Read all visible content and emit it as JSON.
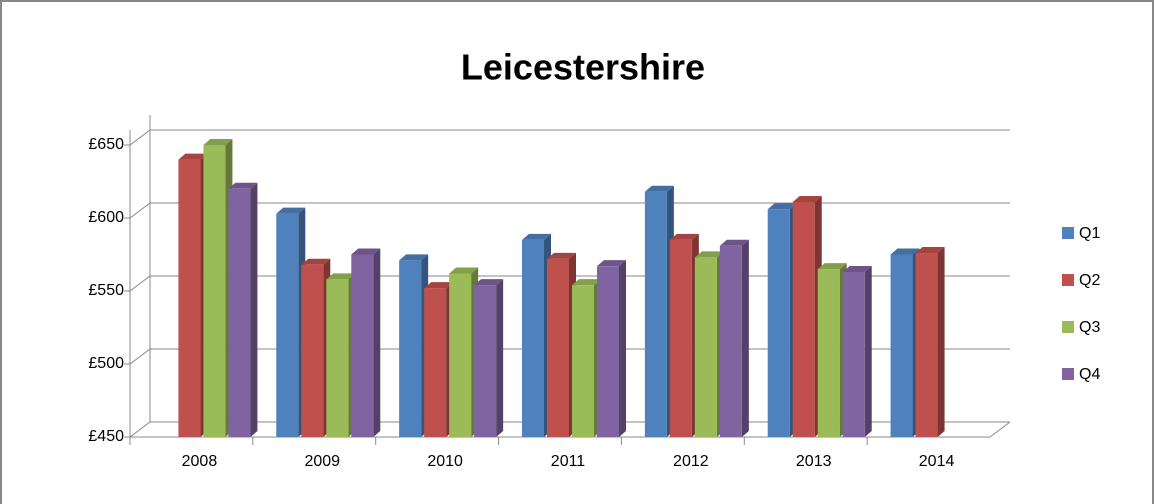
{
  "chart_data": {
    "type": "bar",
    "title": "Leicestershire",
    "categories": [
      "2008",
      "2009",
      "2010",
      "2011",
      "2012",
      "2013",
      "2014"
    ],
    "series": [
      {
        "name": "Q1",
        "color": "#4f81bd",
        "values": [
          null,
          603,
          571,
          585,
          618,
          606,
          575
        ]
      },
      {
        "name": "Q2",
        "color": "#c0504d",
        "values": [
          640,
          568,
          552,
          572,
          585,
          611,
          576
        ]
      },
      {
        "name": "Q3",
        "color": "#9bbb59",
        "values": [
          650,
          558,
          562,
          554,
          573,
          565,
          null
        ]
      },
      {
        "name": "Q4",
        "color": "#8064a2",
        "values": [
          620,
          575,
          554,
          567,
          581,
          563,
          null
        ]
      }
    ],
    "ylim": [
      450,
      650
    ],
    "yticks": [
      {
        "value": 450,
        "label": "£450"
      },
      {
        "value": 500,
        "label": "£500"
      },
      {
        "value": 550,
        "label": "£550"
      },
      {
        "value": 600,
        "label": "£600"
      },
      {
        "value": 650,
        "label": "£650"
      }
    ],
    "grid": true,
    "legend": "right"
  }
}
